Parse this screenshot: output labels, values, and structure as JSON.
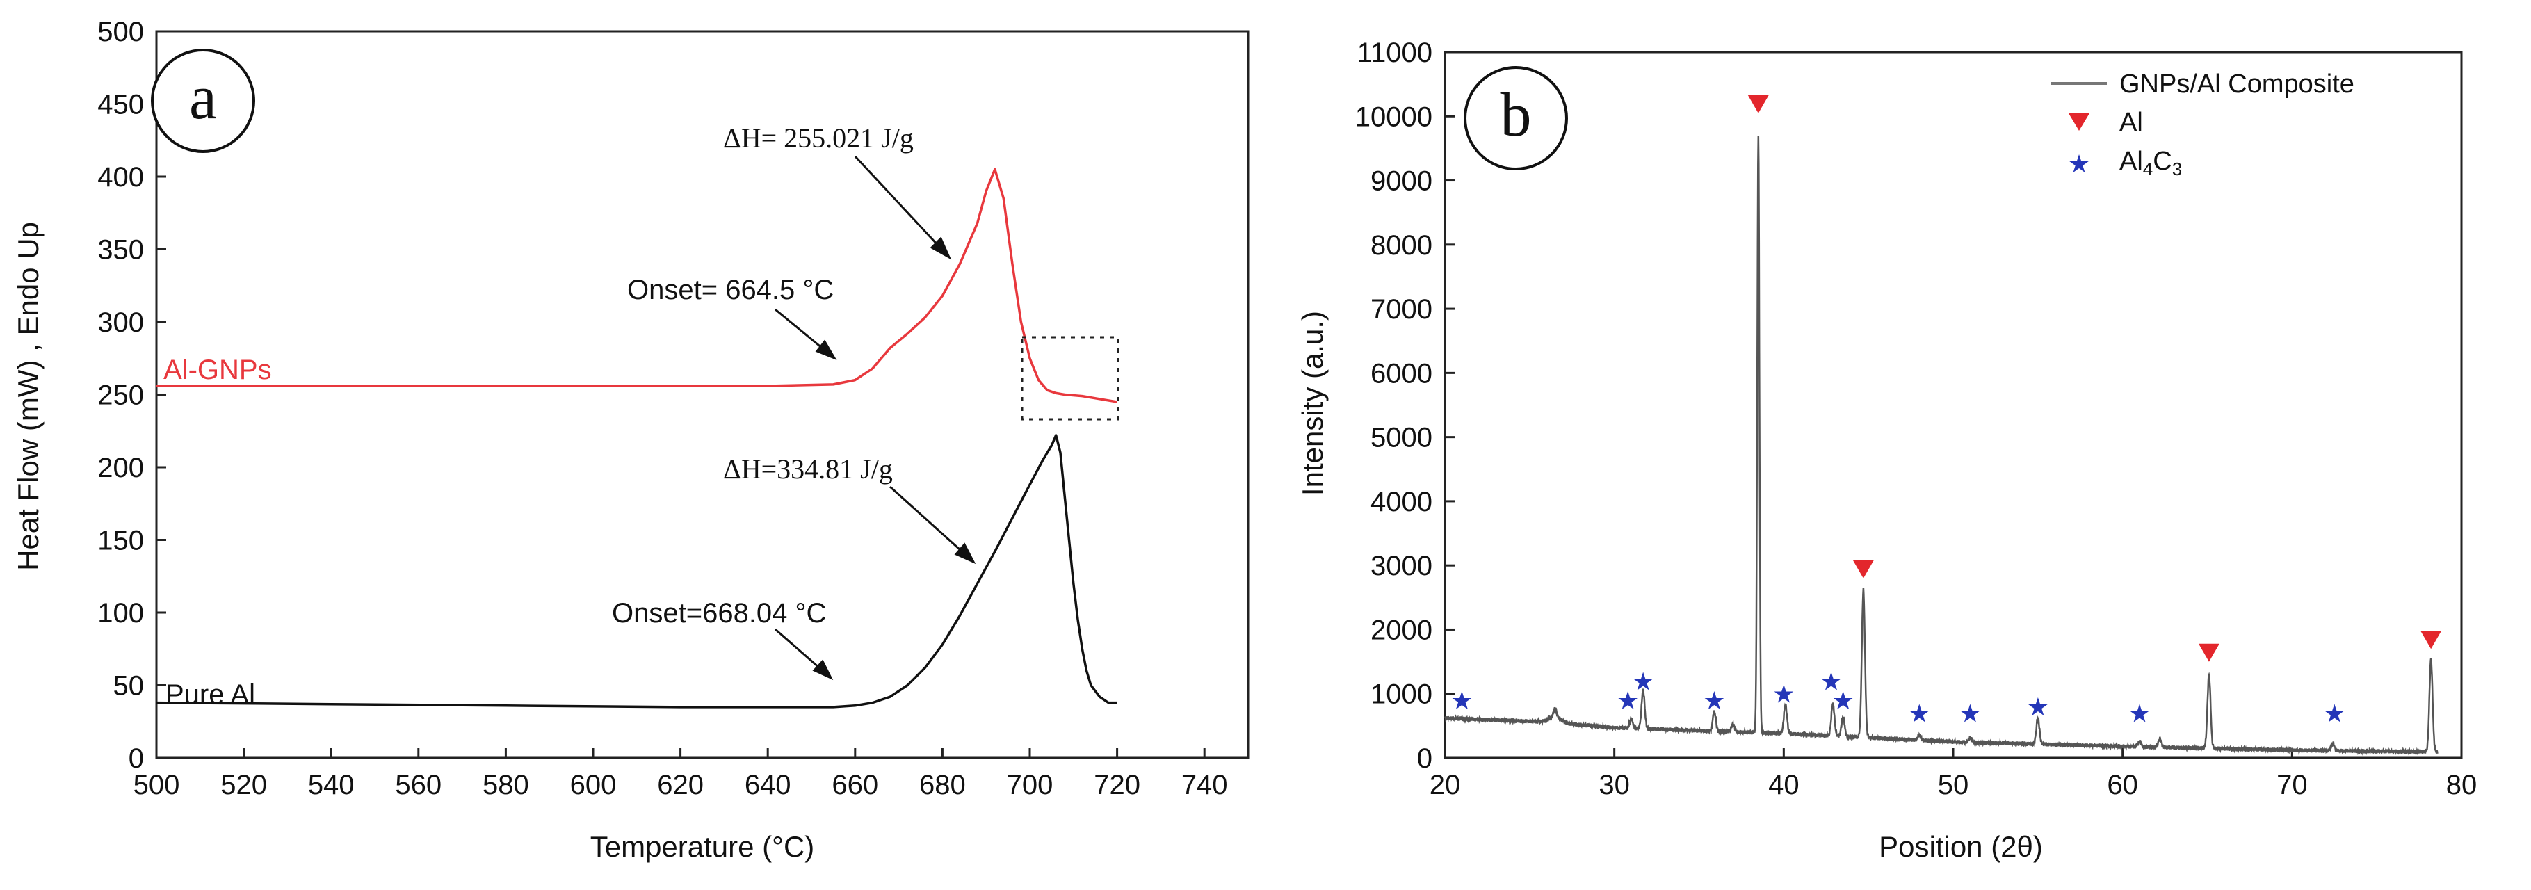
{
  "chart_data": [
    {
      "panel": "a",
      "type": "line",
      "title": "",
      "xlabel": "Temperature (°C)",
      "ylabel": "Heat Flow (mW) , Endo Up",
      "xlim": [
        500,
        750
      ],
      "ylim": [
        0,
        500
      ],
      "xticks": [
        500,
        520,
        540,
        560,
        580,
        600,
        620,
        640,
        660,
        680,
        700,
        720,
        740
      ],
      "yticks": [
        0,
        50,
        100,
        150,
        200,
        250,
        300,
        350,
        400,
        450,
        500
      ],
      "series": [
        {
          "name": "Al-GNPs",
          "color": "#e8383d",
          "x": [
            500,
            540,
            580,
            620,
            640,
            655,
            660,
            664,
            668,
            672,
            676,
            680,
            684,
            688,
            690,
            692,
            694,
            696,
            698,
            700,
            702,
            704,
            706,
            708,
            712,
            716,
            720
          ],
          "y": [
            256,
            256,
            256,
            256,
            256,
            257,
            260,
            268,
            282,
            292,
            303,
            318,
            340,
            368,
            390,
            405,
            385,
            340,
            300,
            275,
            260,
            253,
            251,
            250,
            249,
            247,
            245
          ]
        },
        {
          "name": "Pure Al",
          "color": "#111111",
          "x": [
            500,
            540,
            580,
            620,
            640,
            655,
            660,
            664,
            668,
            672,
            676,
            680,
            684,
            688,
            692,
            696,
            700,
            703,
            705,
            706,
            707,
            708,
            709,
            710,
            711,
            712,
            713,
            714,
            716,
            718,
            720
          ],
          "y": [
            38,
            37,
            36,
            35,
            35,
            35,
            36,
            38,
            42,
            50,
            62,
            78,
            98,
            120,
            142,
            165,
            188,
            205,
            215,
            222,
            210,
            180,
            150,
            120,
            95,
            75,
            60,
            50,
            42,
            38,
            38
          ]
        }
      ],
      "labels": {
        "al_gnps": "Al-GNPs",
        "pure_al": "Pure Al",
        "dh_gnps": "ΔH= 255.021 J/g",
        "onset_gnps": "Onset= 664.5 °C",
        "dh_pure": "ΔH=334.81 J/g",
        "onset_pure": "Onset=668.04 °C"
      }
    },
    {
      "panel": "b",
      "type": "line",
      "title": "",
      "xlabel": "Position (2θ)",
      "ylabel": "Intensity (a.u.)",
      "xlim": [
        20,
        80
      ],
      "ylim": [
        0,
        11000
      ],
      "xticks": [
        20,
        30,
        40,
        50,
        60,
        70,
        80
      ],
      "yticks": [
        0,
        1000,
        2000,
        3000,
        4000,
        5000,
        6000,
        7000,
        8000,
        9000,
        10000,
        11000
      ],
      "legend": {
        "position": "top-right",
        "entries": [
          "GNPs/Al Composite",
          "Al",
          "Al4C3"
        ]
      },
      "series": [
        {
          "name": "GNPs/Al Composite",
          "color": "#555555",
          "baseline": [
            [
              20,
              620
            ],
            [
              26,
              560
            ],
            [
              30,
              470
            ],
            [
              40,
              380
            ],
            [
              50,
              250
            ],
            [
              60,
              180
            ],
            [
              70,
              120
            ],
            [
              80,
              90
            ]
          ],
          "peaks": [
            [
              26.5,
              120
            ],
            [
              31.0,
              150
            ],
            [
              31.7,
              600
            ],
            [
              35.9,
              300
            ],
            [
              37.0,
              120
            ],
            [
              38.5,
              9300
            ],
            [
              40.1,
              450
            ],
            [
              42.9,
              500
            ],
            [
              43.5,
              300
            ],
            [
              44.7,
              2300
            ],
            [
              48.0,
              80
            ],
            [
              51.0,
              70
            ],
            [
              55.0,
              400
            ],
            [
              61.0,
              80
            ],
            [
              62.2,
              130
            ],
            [
              65.1,
              1150
            ],
            [
              72.4,
              120
            ],
            [
              78.2,
              1450
            ]
          ]
        }
      ],
      "markers": {
        "al": {
          "name": "Al",
          "color": "#e3262c",
          "points": [
            [
              38.5,
              10200
            ],
            [
              44.7,
              2950
            ],
            [
              65.1,
              1650
            ],
            [
              78.2,
              1850
            ]
          ]
        },
        "al4c3": {
          "name": "Al4C3",
          "color": "#2436b8",
          "points": [
            [
              21.0,
              900
            ],
            [
              30.8,
              900
            ],
            [
              31.7,
              1200
            ],
            [
              35.9,
              900
            ],
            [
              40.0,
              1000
            ],
            [
              42.8,
              1200
            ],
            [
              43.5,
              900
            ],
            [
              48.0,
              700
            ],
            [
              51.0,
              700
            ],
            [
              55.0,
              800
            ],
            [
              61.0,
              700
            ],
            [
              72.5,
              700
            ]
          ]
        }
      }
    }
  ],
  "panels": {
    "a": "a",
    "b": "b"
  },
  "legend_b": {
    "line": "GNPs/Al Composite",
    "al": "Al",
    "al4c3_base": "Al",
    "al4c3_sub4": "4",
    "al4c3_mid": "C",
    "al4c3_sub3": "3"
  }
}
